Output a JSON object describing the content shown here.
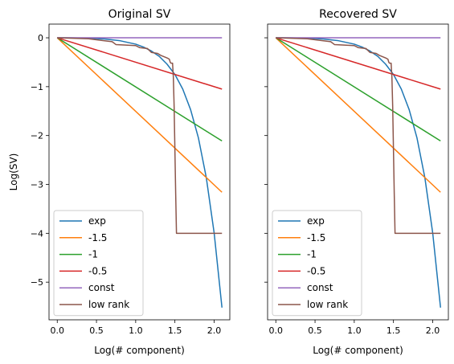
{
  "chart_data": [
    {
      "type": "line",
      "title": "Original SV",
      "xlabel": "Log(# component)",
      "ylabel": "Log(SV)",
      "xlim": [
        -0.105,
        2.2
      ],
      "ylim": [
        -5.77,
        0.28
      ],
      "xticks": [
        "0.0",
        "0.5",
        "1.0",
        "1.5",
        "2.0"
      ],
      "xtick_values": [
        0,
        0.5,
        1.0,
        1.5,
        2.0
      ],
      "yticks": [
        "0",
        "−1",
        "−2",
        "−3",
        "−4",
        "−5"
      ],
      "ytick_values": [
        0,
        -1,
        -2,
        -3,
        -4,
        -5
      ],
      "grid": false,
      "legend_position": "lower-left",
      "series": [
        {
          "name": "exp",
          "color": "#1f77b4",
          "x": [
            0,
            0.2,
            0.4,
            0.6,
            0.8,
            1.0,
            1.1,
            1.2,
            1.3,
            1.4,
            1.5,
            1.6,
            1.7,
            1.8,
            1.9,
            2.0,
            2.1
          ],
          "y": [
            0,
            -0.002,
            -0.008,
            -0.025,
            -0.06,
            -0.13,
            -0.19,
            -0.27,
            -0.38,
            -0.54,
            -0.75,
            -1.05,
            -1.47,
            -2.05,
            -2.86,
            -3.99,
            -5.52
          ]
        },
        {
          "name": "-1.5",
          "color": "#ff7f0e",
          "x": [
            0,
            2.1
          ],
          "y": [
            0,
            -3.16
          ]
        },
        {
          "name": "-1",
          "color": "#2ca02c",
          "x": [
            0,
            2.1
          ],
          "y": [
            0,
            -2.11
          ]
        },
        {
          "name": "-0.5",
          "color": "#d62728",
          "x": [
            0,
            2.1
          ],
          "y": [
            0,
            -1.05
          ]
        },
        {
          "name": "const",
          "color": "#9467bd",
          "x": [
            0,
            2.1
          ],
          "y": [
            0,
            0
          ]
        },
        {
          "name": "low rank",
          "color": "#8c564b",
          "x": [
            0,
            0.4,
            0.7,
            0.75,
            1.0,
            1.05,
            1.15,
            1.2,
            1.28,
            1.32,
            1.38,
            1.41,
            1.43,
            1.44,
            1.45,
            1.47,
            1.48,
            1.49,
            1.5,
            1.51,
            1.52,
            1.6,
            1.8,
            2.1
          ],
          "y": [
            0,
            -0.02,
            -0.08,
            -0.14,
            -0.16,
            -0.2,
            -0.22,
            -0.3,
            -0.32,
            -0.36,
            -0.4,
            -0.42,
            -0.44,
            -0.5,
            -0.52,
            -0.52,
            -0.8,
            -1.4,
            -2.3,
            -3.2,
            -4.0,
            -4.0,
            -4.0,
            -4.0
          ]
        }
      ]
    },
    {
      "type": "line",
      "title": "Recovered SV",
      "xlabel": "Log(# component)",
      "ylabel": "",
      "xlim": [
        -0.105,
        2.2
      ],
      "ylim": [
        -5.77,
        0.28
      ],
      "xticks": [
        "0.0",
        "0.5",
        "1.0",
        "1.5",
        "2.0"
      ],
      "xtick_values": [
        0,
        0.5,
        1.0,
        1.5,
        2.0
      ],
      "yticks": [
        "",
        "",
        "",
        "",
        "",
        ""
      ],
      "ytick_values": [
        0,
        -1,
        -2,
        -3,
        -4,
        -5
      ],
      "grid": false,
      "legend_position": "lower-left",
      "series": [
        {
          "name": "exp",
          "color": "#1f77b4",
          "x": [
            0,
            0.2,
            0.4,
            0.6,
            0.8,
            1.0,
            1.1,
            1.2,
            1.3,
            1.4,
            1.5,
            1.6,
            1.7,
            1.8,
            1.9,
            2.0,
            2.1
          ],
          "y": [
            0,
            -0.002,
            -0.008,
            -0.025,
            -0.06,
            -0.13,
            -0.19,
            -0.27,
            -0.38,
            -0.54,
            -0.75,
            -1.05,
            -1.47,
            -2.05,
            -2.86,
            -3.99,
            -5.52
          ]
        },
        {
          "name": "-1.5",
          "color": "#ff7f0e",
          "x": [
            0,
            2.1
          ],
          "y": [
            0,
            -3.16
          ]
        },
        {
          "name": "-1",
          "color": "#2ca02c",
          "x": [
            0,
            2.1
          ],
          "y": [
            0,
            -2.11
          ]
        },
        {
          "name": "-0.5",
          "color": "#d62728",
          "x": [
            0,
            2.1
          ],
          "y": [
            0,
            -1.05
          ]
        },
        {
          "name": "const",
          "color": "#9467bd",
          "x": [
            0,
            2.1
          ],
          "y": [
            0,
            0
          ]
        },
        {
          "name": "low rank",
          "color": "#8c564b",
          "x": [
            0,
            0.4,
            0.7,
            0.75,
            1.0,
            1.05,
            1.15,
            1.2,
            1.28,
            1.32,
            1.38,
            1.41,
            1.43,
            1.44,
            1.45,
            1.47,
            1.48,
            1.49,
            1.5,
            1.51,
            1.52,
            1.6,
            1.8,
            2.1
          ],
          "y": [
            0,
            -0.02,
            -0.08,
            -0.14,
            -0.16,
            -0.2,
            -0.22,
            -0.3,
            -0.32,
            -0.36,
            -0.4,
            -0.42,
            -0.44,
            -0.5,
            -0.52,
            -0.52,
            -0.8,
            -1.4,
            -2.3,
            -3.2,
            -4.0,
            -4.0,
            -4.0,
            -4.0
          ]
        }
      ]
    }
  ]
}
